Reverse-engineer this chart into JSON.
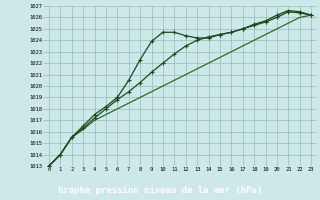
{
  "title": "Graphe pression niveau de la mer (hPa)",
  "bg_color": "#cce8e8",
  "plot_bg": "#cce8e8",
  "grid_color": "#99bbbb",
  "line_color_dark": "#1a4a1a",
  "line_color_med": "#2d6b2d",
  "bottom_bg": "#336633",
  "bottom_text_color": "#ffffff",
  "xlim": [
    -0.5,
    23.5
  ],
  "ylim": [
    1013,
    1027
  ],
  "xticks": [
    0,
    1,
    2,
    3,
    4,
    5,
    6,
    7,
    8,
    9,
    10,
    11,
    12,
    13,
    14,
    15,
    16,
    17,
    18,
    19,
    20,
    21,
    22,
    23
  ],
  "yticks": [
    1013,
    1014,
    1015,
    1016,
    1017,
    1018,
    1019,
    1020,
    1021,
    1022,
    1023,
    1024,
    1025,
    1026,
    1027
  ],
  "series1_x": [
    0,
    1,
    2,
    3,
    4,
    5,
    6,
    7,
    8,
    9,
    10,
    11,
    12,
    13,
    14,
    15,
    16,
    17,
    18,
    19,
    20,
    21,
    22,
    23
  ],
  "series1_y": [
    1013.0,
    1014.0,
    1015.5,
    1016.2,
    1017.0,
    1017.5,
    1018.0,
    1018.5,
    1019.0,
    1019.5,
    1020.0,
    1020.5,
    1021.0,
    1021.5,
    1022.0,
    1022.5,
    1023.0,
    1023.5,
    1024.0,
    1024.5,
    1025.0,
    1025.5,
    1026.0,
    1026.2
  ],
  "series2_x": [
    0,
    1,
    2,
    3,
    4,
    5,
    6,
    7,
    8,
    9,
    10,
    11,
    12,
    13,
    14,
    15,
    16,
    17,
    18,
    19,
    20,
    21,
    22,
    23
  ],
  "series2_y": [
    1013.0,
    1014.0,
    1015.5,
    1016.3,
    1017.2,
    1018.0,
    1018.8,
    1019.5,
    1020.3,
    1021.2,
    1022.0,
    1022.8,
    1023.5,
    1024.0,
    1024.3,
    1024.5,
    1024.7,
    1025.0,
    1025.3,
    1025.6,
    1026.0,
    1026.5,
    1026.4,
    1026.2
  ],
  "series3_x": [
    0,
    1,
    2,
    3,
    4,
    5,
    6,
    7,
    8,
    9,
    10,
    11,
    12,
    13,
    14,
    15,
    16,
    17,
    18,
    19,
    20,
    21,
    22,
    23
  ],
  "series3_y": [
    1013.0,
    1014.0,
    1015.5,
    1016.5,
    1017.5,
    1018.2,
    1019.0,
    1020.5,
    1022.3,
    1023.9,
    1024.7,
    1024.7,
    1024.4,
    1024.2,
    1024.2,
    1024.5,
    1024.7,
    1025.0,
    1025.4,
    1025.7,
    1026.2,
    1026.6,
    1026.5,
    1026.2
  ]
}
